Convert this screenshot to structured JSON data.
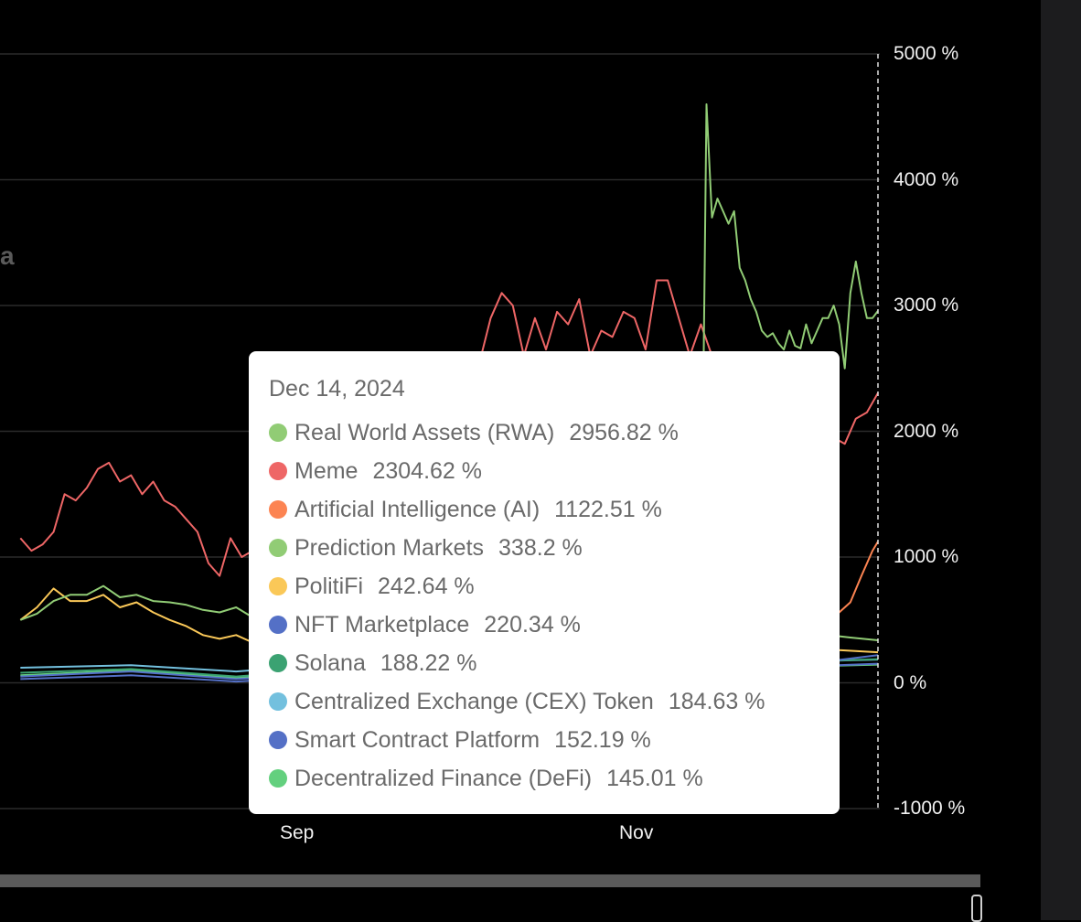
{
  "watermark": "a",
  "chart_data": {
    "type": "line",
    "y_unit": "%",
    "ylim": [
      -1000,
      5000
    ],
    "y_ticks": [
      5000,
      4000,
      3000,
      2000,
      1000,
      0,
      -1000
    ],
    "y_tick_labels": [
      "5000 %",
      "4000 %",
      "3000 %",
      "2000 %",
      "1000 %",
      "0 %",
      "-1000 %"
    ],
    "x_tick_labels": [
      "Sep",
      "Nov"
    ],
    "grid": true,
    "crosshair_date": "Dec 14, 2024",
    "series": [
      {
        "name": "Real World Assets (RWA)",
        "color": "#91cc75",
        "points": [
          [
            "2024-10-31",
            350
          ],
          [
            "2024-11-03",
            420
          ],
          [
            "2024-11-05",
            480
          ],
          [
            "2024-11-07",
            520
          ],
          [
            "2024-11-10",
            600
          ],
          [
            "2024-11-12",
            600
          ],
          [
            "2024-11-13",
            4600
          ],
          [
            "2024-11-14",
            3700
          ],
          [
            "2024-11-15",
            3850
          ],
          [
            "2024-11-16",
            3750
          ],
          [
            "2024-11-17",
            3650
          ],
          [
            "2024-11-18",
            3750
          ],
          [
            "2024-11-19",
            3300
          ],
          [
            "2024-11-20",
            3200
          ],
          [
            "2024-11-21",
            3050
          ],
          [
            "2024-11-22",
            2950
          ],
          [
            "2024-11-23",
            2800
          ],
          [
            "2024-11-24",
            2750
          ],
          [
            "2024-11-25",
            2780
          ],
          [
            "2024-11-26",
            2700
          ],
          [
            "2024-11-27",
            2650
          ],
          [
            "2024-11-28",
            2800
          ],
          [
            "2024-11-29",
            2680
          ],
          [
            "2024-11-30",
            2660
          ],
          [
            "2024-12-01",
            2850
          ],
          [
            "2024-12-02",
            2700
          ],
          [
            "2024-12-03",
            2800
          ],
          [
            "2024-12-04",
            2900
          ],
          [
            "2024-12-05",
            2900
          ],
          [
            "2024-12-06",
            3000
          ],
          [
            "2024-12-07",
            2850
          ],
          [
            "2024-12-08",
            2500
          ],
          [
            "2024-12-09",
            3100
          ],
          [
            "2024-12-10",
            3350
          ],
          [
            "2024-12-11",
            3100
          ],
          [
            "2024-12-12",
            2900
          ],
          [
            "2024-12-13",
            2900
          ],
          [
            "2024-12-14",
            2956.82
          ]
        ]
      },
      {
        "name": "Meme",
        "color": "#ee6666",
        "points": [
          [
            "2024-07-12",
            1150
          ],
          [
            "2024-07-14",
            1050
          ],
          [
            "2024-07-16",
            1100
          ],
          [
            "2024-07-18",
            1200
          ],
          [
            "2024-07-20",
            1500
          ],
          [
            "2024-07-22",
            1450
          ],
          [
            "2024-07-24",
            1550
          ],
          [
            "2024-07-26",
            1700
          ],
          [
            "2024-07-28",
            1750
          ],
          [
            "2024-07-30",
            1600
          ],
          [
            "2024-08-01",
            1650
          ],
          [
            "2024-08-03",
            1500
          ],
          [
            "2024-08-05",
            1600
          ],
          [
            "2024-08-07",
            1450
          ],
          [
            "2024-08-09",
            1400
          ],
          [
            "2024-08-11",
            1300
          ],
          [
            "2024-08-13",
            1200
          ],
          [
            "2024-08-15",
            950
          ],
          [
            "2024-08-17",
            850
          ],
          [
            "2024-08-19",
            1150
          ],
          [
            "2024-08-21",
            1000
          ],
          [
            "2024-08-23",
            1050
          ],
          [
            "2024-08-25",
            1100
          ],
          [
            "2024-08-27",
            950
          ],
          [
            "2024-08-29",
            1050
          ],
          [
            "2024-08-31",
            1300
          ],
          [
            "2024-09-02",
            1600
          ],
          [
            "2024-09-06",
            1900
          ],
          [
            "2024-09-10",
            2050
          ],
          [
            "2024-09-14",
            2150
          ],
          [
            "2024-09-18",
            2250
          ],
          [
            "2024-09-22",
            2350
          ],
          [
            "2024-09-26",
            2450
          ],
          [
            "2024-09-30",
            2500
          ],
          [
            "2024-10-03",
            2550
          ],
          [
            "2024-10-05",
            2900
          ],
          [
            "2024-10-07",
            3100
          ],
          [
            "2024-10-09",
            3000
          ],
          [
            "2024-10-11",
            2600
          ],
          [
            "2024-10-13",
            2900
          ],
          [
            "2024-10-15",
            2650
          ],
          [
            "2024-10-17",
            2950
          ],
          [
            "2024-10-19",
            2850
          ],
          [
            "2024-10-21",
            3050
          ],
          [
            "2024-10-23",
            2600
          ],
          [
            "2024-10-25",
            2800
          ],
          [
            "2024-10-27",
            2750
          ],
          [
            "2024-10-29",
            2950
          ],
          [
            "2024-10-31",
            2900
          ],
          [
            "2024-11-02",
            2650
          ],
          [
            "2024-11-04",
            3200
          ],
          [
            "2024-11-06",
            3200
          ],
          [
            "2024-11-08",
            2900
          ],
          [
            "2024-11-10",
            2600
          ],
          [
            "2024-11-12",
            2850
          ],
          [
            "2024-11-14",
            2600
          ],
          [
            "2024-11-20",
            2400
          ],
          [
            "2024-11-25",
            2200
          ],
          [
            "2024-11-30",
            2100
          ],
          [
            "2024-12-04",
            2050
          ],
          [
            "2024-12-06",
            1950
          ],
          [
            "2024-12-08",
            1900
          ],
          [
            "2024-12-10",
            2100
          ],
          [
            "2024-12-12",
            2150
          ],
          [
            "2024-12-14",
            2304.62
          ]
        ]
      },
      {
        "name": "Artificial Intelligence (AI)",
        "color": "#fc8452",
        "points": [
          [
            "2024-11-29",
            600
          ],
          [
            "2024-12-01",
            580
          ],
          [
            "2024-12-03",
            600
          ],
          [
            "2024-12-05",
            650
          ],
          [
            "2024-12-07",
            560
          ],
          [
            "2024-12-09",
            640
          ],
          [
            "2024-12-11",
            850
          ],
          [
            "2024-12-13",
            1050
          ],
          [
            "2024-12-14",
            1122.51
          ]
        ]
      },
      {
        "name": "Prediction Markets",
        "color": "#91cc75",
        "points": [
          [
            "2024-07-12",
            500
          ],
          [
            "2024-07-15",
            550
          ],
          [
            "2024-07-18",
            650
          ],
          [
            "2024-07-21",
            700
          ],
          [
            "2024-07-24",
            700
          ],
          [
            "2024-07-27",
            770
          ],
          [
            "2024-07-30",
            680
          ],
          [
            "2024-08-02",
            700
          ],
          [
            "2024-08-05",
            650
          ],
          [
            "2024-08-08",
            640
          ],
          [
            "2024-08-11",
            620
          ],
          [
            "2024-08-14",
            580
          ],
          [
            "2024-08-17",
            560
          ],
          [
            "2024-08-20",
            600
          ],
          [
            "2024-08-23",
            520
          ],
          [
            "2024-08-26",
            480
          ],
          [
            "2024-08-29",
            460
          ],
          [
            "2024-09-01",
            430
          ],
          [
            "2024-09-04",
            420
          ],
          [
            "2024-12-01",
            420
          ],
          [
            "2024-12-05",
            380
          ],
          [
            "2024-12-09",
            360
          ],
          [
            "2024-12-14",
            338.2
          ]
        ]
      },
      {
        "name": "PolitiFi",
        "color": "#fac858",
        "points": [
          [
            "2024-07-12",
            500
          ],
          [
            "2024-07-15",
            600
          ],
          [
            "2024-07-18",
            750
          ],
          [
            "2024-07-21",
            650
          ],
          [
            "2024-07-24",
            650
          ],
          [
            "2024-07-27",
            700
          ],
          [
            "2024-07-30",
            600
          ],
          [
            "2024-08-02",
            640
          ],
          [
            "2024-08-05",
            560
          ],
          [
            "2024-08-08",
            500
          ],
          [
            "2024-08-11",
            450
          ],
          [
            "2024-08-14",
            380
          ],
          [
            "2024-08-17",
            350
          ],
          [
            "2024-08-20",
            380
          ],
          [
            "2024-08-23",
            320
          ],
          [
            "2024-08-26",
            280
          ],
          [
            "2024-08-29",
            300
          ],
          [
            "2024-09-01",
            330
          ],
          [
            "2024-12-01",
            300
          ],
          [
            "2024-12-07",
            260
          ],
          [
            "2024-12-14",
            242.64
          ]
        ]
      },
      {
        "name": "NFT Marketplace",
        "color": "#5470c6",
        "points": [
          [
            "2024-07-12",
            50
          ],
          [
            "2024-08-01",
            90
          ],
          [
            "2024-08-20",
            30
          ],
          [
            "2024-09-01",
            60
          ],
          [
            "2024-12-01",
            150
          ],
          [
            "2024-12-14",
            220.34
          ]
        ]
      },
      {
        "name": "Solana",
        "color": "#3ba272",
        "points": [
          [
            "2024-07-12",
            80
          ],
          [
            "2024-08-01",
            110
          ],
          [
            "2024-08-20",
            50
          ],
          [
            "2024-09-01",
            90
          ],
          [
            "2024-12-01",
            170
          ],
          [
            "2024-12-14",
            188.22
          ]
        ]
      },
      {
        "name": "Centralized Exchange (CEX) Token",
        "color": "#73c0de",
        "points": [
          [
            "2024-07-12",
            120
          ],
          [
            "2024-08-01",
            140
          ],
          [
            "2024-08-20",
            90
          ],
          [
            "2024-09-01",
            130
          ],
          [
            "2024-12-01",
            170
          ],
          [
            "2024-12-14",
            184.63
          ]
        ]
      },
      {
        "name": "Smart Contract Platform",
        "color": "#5470c6",
        "points": [
          [
            "2024-07-12",
            30
          ],
          [
            "2024-08-01",
            60
          ],
          [
            "2024-08-20",
            10
          ],
          [
            "2024-09-01",
            40
          ],
          [
            "2024-12-01",
            130
          ],
          [
            "2024-12-14",
            152.19
          ]
        ]
      },
      {
        "name": "Decentralized Finance (DeFi)",
        "color": "#63d07e",
        "points": [
          [
            "2024-07-12",
            60
          ],
          [
            "2024-08-01",
            100
          ],
          [
            "2024-08-20",
            40
          ],
          [
            "2024-09-01",
            80
          ],
          [
            "2024-12-01",
            130
          ],
          [
            "2024-12-14",
            145.01
          ]
        ]
      }
    ]
  },
  "tooltip": {
    "date": "Dec 14, 2024",
    "rows": [
      {
        "name": "Real World Assets (RWA)",
        "value": "2956.82 %",
        "color": "#91cc75"
      },
      {
        "name": "Meme",
        "value": "2304.62 %",
        "color": "#ee6666"
      },
      {
        "name": "Artificial Intelligence (AI)",
        "value": "1122.51 %",
        "color": "#fc8452"
      },
      {
        "name": "Prediction Markets",
        "value": "338.2 %",
        "color": "#91cc75"
      },
      {
        "name": "PolitiFi",
        "value": "242.64 %",
        "color": "#fac858"
      },
      {
        "name": "NFT Marketplace",
        "value": "220.34 %",
        "color": "#5470c6"
      },
      {
        "name": "Solana",
        "value": "188.22 %",
        "color": "#3ba272"
      },
      {
        "name": "Centralized Exchange (CEX) Token",
        "value": "184.63 %",
        "color": "#73c0de"
      },
      {
        "name": "Smart Contract Platform",
        "value": "152.19 %",
        "color": "#5470c6"
      },
      {
        "name": "Decentralized Finance (DeFi)",
        "value": "145.01 %",
        "color": "#63d07e"
      }
    ]
  }
}
